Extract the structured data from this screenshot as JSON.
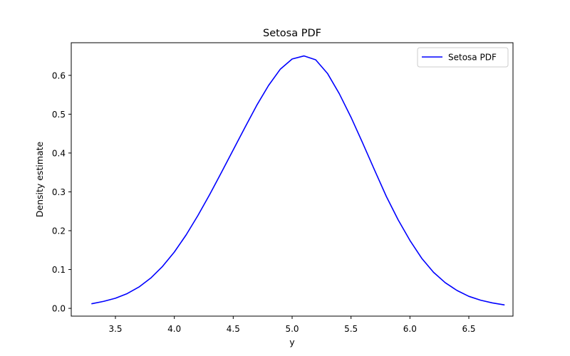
{
  "chart_data": {
    "type": "line",
    "title": "Setosa PDF",
    "xlabel": "y",
    "ylabel": "Density estimate",
    "xlim": [
      3.125,
      6.875
    ],
    "ylim": [
      -0.02,
      0.684
    ],
    "xticks": [
      3.5,
      4.0,
      4.5,
      5.0,
      5.5,
      6.0,
      6.5
    ],
    "xtick_labels": [
      "3.5",
      "4.0",
      "4.5",
      "5.0",
      "5.5",
      "6.0",
      "6.5"
    ],
    "yticks": [
      0.0,
      0.1,
      0.2,
      0.3,
      0.4,
      0.5,
      0.6
    ],
    "ytick_labels": [
      "0.0",
      "0.1",
      "0.2",
      "0.3",
      "0.4",
      "0.5",
      "0.6"
    ],
    "grid": false,
    "legend": {
      "position": "top-right",
      "entries": [
        "Setosa PDF"
      ]
    },
    "series": [
      {
        "name": "Setosa PDF",
        "color": "#0000ff",
        "x": [
          3.3,
          3.4,
          3.5,
          3.6,
          3.7,
          3.8,
          3.9,
          4.0,
          4.1,
          4.2,
          4.3,
          4.4,
          4.5,
          4.6,
          4.7,
          4.8,
          4.9,
          5.0,
          5.1,
          5.2,
          5.3,
          5.4,
          5.5,
          5.6,
          5.7,
          5.8,
          5.9,
          6.0,
          6.1,
          6.2,
          6.3,
          6.4,
          6.5,
          6.6,
          6.7,
          6.8
        ],
        "y": [
          0.012,
          0.018,
          0.026,
          0.038,
          0.055,
          0.078,
          0.108,
          0.145,
          0.189,
          0.239,
          0.293,
          0.35,
          0.408,
          0.466,
          0.523,
          0.574,
          0.616,
          0.642,
          0.65,
          0.64,
          0.605,
          0.553,
          0.492,
          0.425,
          0.356,
          0.288,
          0.228,
          0.175,
          0.129,
          0.093,
          0.066,
          0.046,
          0.031,
          0.021,
          0.014,
          0.009
        ]
      }
    ]
  }
}
